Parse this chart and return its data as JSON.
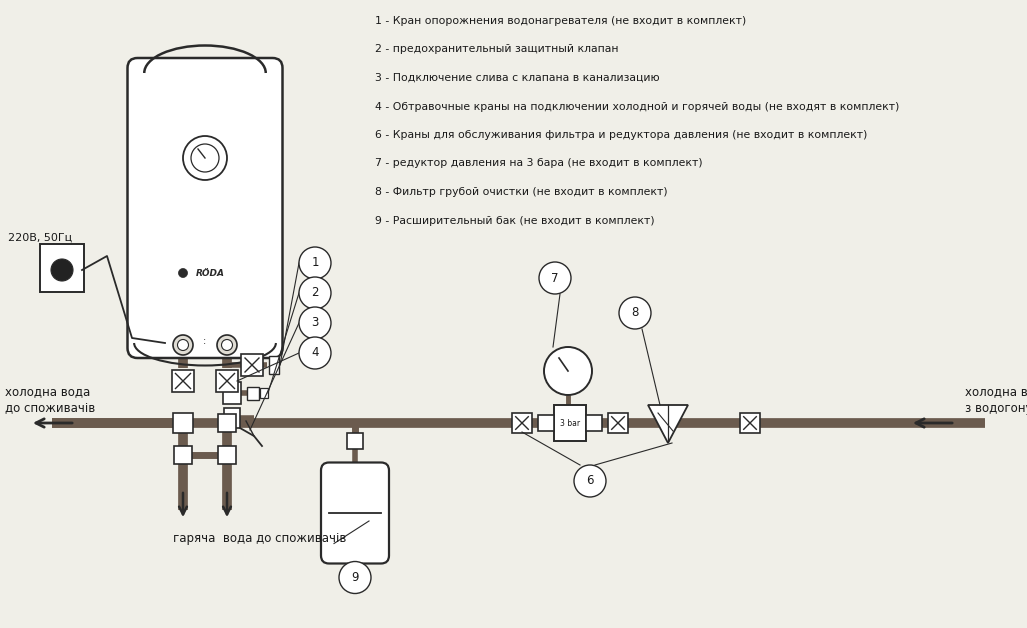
{
  "bg_color": "#f0efe8",
  "pipe_color": "#6b5b4e",
  "outline_color": "#2a2a2a",
  "text_color": "#1a1a1a",
  "legend_lines": [
    "1 - Кран опорожнения водонагревателя (не входит в комплект)",
    "2 - предохранительный защитный клапан",
    "3 - Подключение слива с клапана в канализацию",
    "4 - Обтравочные краны на подключении холодной и горячей воды (не входят в комплект)",
    "6 - Краны для обслуживания фильтра и редуктора давления (не входит в комплект)",
    "7 - редуктор давления на 3 бара (не входит в комплект)",
    "8 - Фильтр грубой очистки (не входит в комплект)",
    "9 - Расширительный бак (не входит в комплект)"
  ],
  "label_cold_left": "холодна вода\nдо споживачів",
  "label_cold_right": "холодна вода\nз водогону",
  "label_hot": "гаряча  вода до споживачів",
  "label_voltage": "220В, 50Гц",
  "label_roda": "RÖDA",
  "label_3bar": "3 bar"
}
